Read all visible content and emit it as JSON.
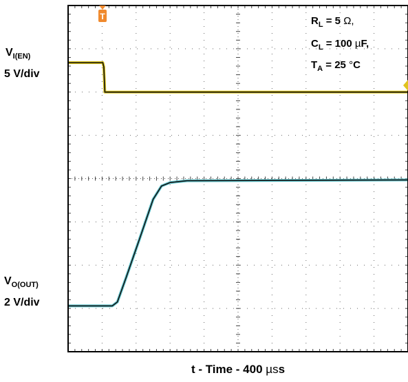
{
  "chart_data": {
    "type": "line",
    "x_units": "div",
    "x_scale": "400 µs/div",
    "x_range_div": [
      0,
      10
    ],
    "y_range_div": [
      0,
      8
    ],
    "grid": true,
    "xlabel": {
      "prefix": "t - Time - 400 ",
      "unit": "µs"
    },
    "channels": [
      {
        "label_main": "V",
        "label_sub": "I(EN)",
        "scale": "5 V/div",
        "color": "#d9c21a",
        "points": [
          [
            0,
            6.68
          ],
          [
            1.02,
            6.68
          ],
          [
            1.02,
            6.68
          ],
          [
            1.05,
            6.58
          ],
          [
            1.08,
            6.0
          ],
          [
            1.08,
            6.0
          ],
          [
            10,
            6.0
          ]
        ]
      },
      {
        "label_main": "V",
        "label_sub": "O(OUT)",
        "scale": "2 V/div",
        "color": "#5fc4cc",
        "points": [
          [
            0,
            1.06
          ],
          [
            1.3,
            1.06
          ],
          [
            1.45,
            1.15
          ],
          [
            1.7,
            1.7
          ],
          [
            2.1,
            2.6
          ],
          [
            2.5,
            3.52
          ],
          [
            2.75,
            3.83
          ],
          [
            3.0,
            3.91
          ],
          [
            3.5,
            3.95
          ],
          [
            10,
            3.97
          ]
        ]
      }
    ],
    "annotations": {
      "rl": {
        "main": "R",
        "sub": "L",
        "text": " = 5 ",
        "unit": "Ω,",
        "tail": ""
      },
      "cl": {
        "main": "C",
        "sub": "L",
        "text": " = 100 ",
        "unit": "µ",
        "tail": "F,"
      },
      "ta": {
        "main": "T",
        "sub": "A",
        "text": " = 25 ",
        "unit": "°",
        "tail": "C"
      }
    },
    "trigger_marker": "T"
  }
}
